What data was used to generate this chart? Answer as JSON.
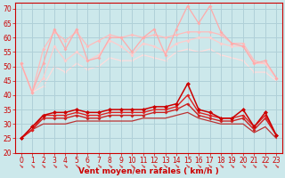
{
  "xlabel": "Vent moyen/en rafales ( km/h )",
  "bg_color": "#cce8eb",
  "grid_color": "#b0d0d8",
  "xlim": [
    -0.5,
    23.5
  ],
  "ylim": [
    20,
    72
  ],
  "yticks": [
    20,
    25,
    30,
    35,
    40,
    45,
    50,
    55,
    60,
    65,
    70
  ],
  "xticks": [
    0,
    1,
    2,
    3,
    4,
    5,
    6,
    7,
    8,
    9,
    10,
    11,
    12,
    13,
    14,
    15,
    16,
    17,
    18,
    19,
    20,
    21,
    22,
    23
  ],
  "lines": [
    {
      "y": [
        51,
        41,
        51,
        63,
        56,
        63,
        52,
        53,
        60,
        60,
        55,
        60,
        63,
        54,
        63,
        71,
        65,
        71,
        62,
        58,
        57,
        51,
        52,
        46
      ],
      "color": "#ffaaaa",
      "lw": 0.9,
      "marker": "D",
      "ms": 2.0,
      "zorder": 3
    },
    {
      "y": [
        51,
        41,
        56,
        62,
        59,
        62,
        57,
        59,
        61,
        60,
        61,
        60,
        61,
        60,
        61,
        62,
        62,
        62,
        61,
        58,
        58,
        52,
        51,
        46
      ],
      "color": "#ffbbbb",
      "lw": 0.9,
      "marker": "D",
      "ms": 2.0,
      "zorder": 2
    },
    {
      "y": [
        51,
        41,
        46,
        57,
        52,
        55,
        52,
        54,
        59,
        57,
        54,
        58,
        57,
        55,
        58,
        59,
        60,
        60,
        58,
        57,
        57,
        51,
        51,
        46
      ],
      "color": "#ffcccc",
      "lw": 0.9,
      "marker": "D",
      "ms": 2.0,
      "zorder": 2
    },
    {
      "y": [
        51,
        41,
        43,
        50,
        48,
        51,
        49,
        50,
        53,
        52,
        52,
        54,
        53,
        52,
        55,
        56,
        55,
        56,
        54,
        53,
        52,
        48,
        48,
        45
      ],
      "color": "#ffdddd",
      "lw": 0.9,
      "marker": "D",
      "ms": 1.8,
      "zorder": 1
    },
    {
      "y": [
        25,
        29,
        33,
        34,
        34,
        35,
        34,
        34,
        35,
        35,
        35,
        35,
        36,
        36,
        37,
        44,
        35,
        34,
        32,
        32,
        35,
        29,
        34,
        26
      ],
      "color": "#cc0000",
      "lw": 1.1,
      "marker": "D",
      "ms": 2.5,
      "zorder": 5
    },
    {
      "y": [
        25,
        28,
        33,
        33,
        33,
        34,
        33,
        33,
        34,
        34,
        34,
        34,
        35,
        35,
        36,
        40,
        34,
        33,
        32,
        32,
        33,
        29,
        33,
        26
      ],
      "color": "#dd2222",
      "lw": 1.0,
      "marker": "D",
      "ms": 2.0,
      "zorder": 4
    },
    {
      "y": [
        25,
        28,
        32,
        32,
        32,
        33,
        32,
        32,
        33,
        33,
        33,
        33,
        34,
        34,
        35,
        37,
        33,
        32,
        31,
        31,
        32,
        28,
        32,
        26
      ],
      "color": "#cc2222",
      "lw": 1.0,
      "marker": "D",
      "ms": 2.0,
      "zorder": 3
    },
    {
      "y": [
        25,
        28,
        30,
        30,
        30,
        31,
        31,
        31,
        31,
        31,
        31,
        32,
        32,
        32,
        33,
        34,
        32,
        31,
        30,
        30,
        30,
        27,
        29,
        25
      ],
      "color": "#bb3333",
      "lw": 0.9,
      "marker": null,
      "ms": 0,
      "zorder": 2
    }
  ],
  "xlabel_color": "#cc0000",
  "xlabel_fontsize": 6.5,
  "tick_fontsize": 5.5,
  "tick_color": "#cc0000",
  "axis_color": "#cc0000",
  "arrow_color": "#cc0000"
}
